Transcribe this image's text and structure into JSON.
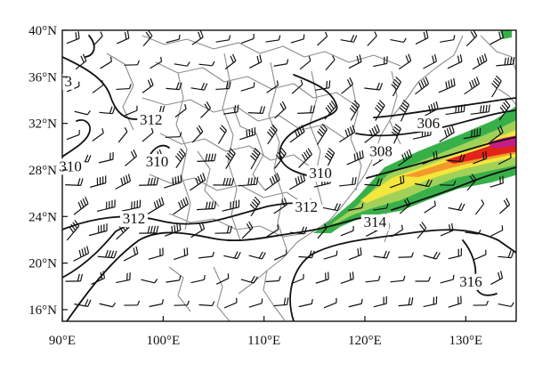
{
  "map": {
    "lon_range": [
      90,
      135
    ],
    "lat_range": [
      15,
      40
    ],
    "x_ticks": [
      {
        "value": 90,
        "label": "90°E"
      },
      {
        "value": 100,
        "label": "100°E"
      },
      {
        "value": 110,
        "label": "110°E"
      },
      {
        "value": 120,
        "label": "120°E"
      },
      {
        "value": 130,
        "label": "130°E"
      }
    ],
    "y_ticks": [
      {
        "value": 16,
        "label": "16°N"
      },
      {
        "value": 20,
        "label": "20°N"
      },
      {
        "value": 24,
        "label": "24°N"
      },
      {
        "value": 28,
        "label": "28°N"
      },
      {
        "value": 32,
        "label": "32°N"
      },
      {
        "value": 36,
        "label": "36°N"
      },
      {
        "value": 40,
        "label": "40°N"
      }
    ],
    "contour_labels": [
      {
        "text": "312",
        "lon": 98.8,
        "lat": 31.9
      },
      {
        "text": "310",
        "lon": 99.4,
        "lat": 28.3
      },
      {
        "text": "310",
        "lon": 90.8,
        "lat": 27.9
      },
      {
        "text": "310",
        "lon": 115.6,
        "lat": 27.3
      },
      {
        "text": "312",
        "lon": 114.2,
        "lat": 24.4
      },
      {
        "text": "312",
        "lon": 97.1,
        "lat": 23.4
      },
      {
        "text": "314",
        "lon": 121.0,
        "lat": 23.1
      },
      {
        "text": "308",
        "lon": 121.6,
        "lat": 29.2
      },
      {
        "text": "306",
        "lon": 126.3,
        "lat": 31.6
      },
      {
        "text": "316",
        "lon": 130.5,
        "lat": 18.0
      },
      {
        "text": "3",
        "lon": 90.6,
        "lat": 35.2
      }
    ],
    "colors": {
      "contour": "#111111",
      "boundary": "#8c8c8c",
      "wind_barb": "#111111",
      "shading": [
        "#38b04a",
        "#a2d15a",
        "#f3e63c",
        "#f39a2c",
        "#e2231a",
        "#c21f86"
      ]
    }
  }
}
